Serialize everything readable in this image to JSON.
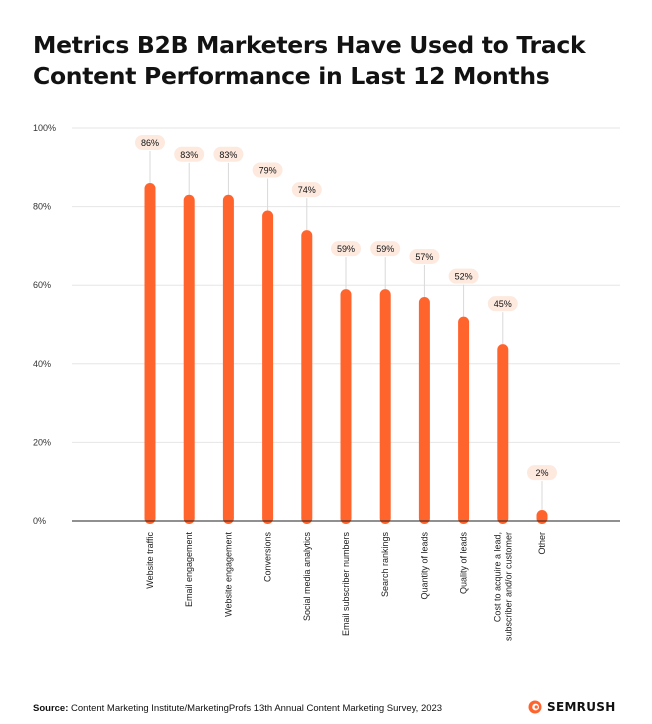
{
  "title_lines": [
    "Metrics B2B Marketers Have Used to Track",
    "Content Performance in Last 12 Months"
  ],
  "footer": {
    "source_label": "Source:",
    "source_text": "Content Marketing Institute/MarketingProfs 13th Annual Content Marketing Survey, 2023"
  },
  "brand": {
    "name": "SEMRUSH",
    "icon": "semrush-flame-icon"
  },
  "colors": {
    "bar": "#ff642d",
    "label_bg": "#fde9de",
    "grid": "#e6e6e6",
    "axis": "#222222"
  },
  "chart_data": {
    "type": "bar",
    "title": "Metrics B2B Marketers Have Used to Track Content Performance in Last 12 Months",
    "categories": [
      [
        "Website traffic"
      ],
      [
        "Email engagement"
      ],
      [
        "Website engagement"
      ],
      [
        "Conversions"
      ],
      [
        "Social media analytics"
      ],
      [
        "Email subscriber numbers"
      ],
      [
        "Search rankings"
      ],
      [
        "Quantity of leads"
      ],
      [
        "Quality of leads"
      ],
      [
        "Cost to acquire a lead,",
        "subscriber and/or customer"
      ],
      [
        "Other"
      ]
    ],
    "values": [
      86,
      83,
      83,
      79,
      74,
      59,
      59,
      57,
      52,
      45,
      2
    ],
    "value_labels": [
      "86%",
      "83%",
      "83%",
      "79%",
      "74%",
      "59%",
      "59%",
      "57%",
      "52%",
      "45%",
      "2%"
    ],
    "y_ticks": [
      0,
      20,
      40,
      60,
      80,
      100
    ],
    "y_tick_labels": [
      "0%",
      "20%",
      "40%",
      "60%",
      "80%",
      "100%"
    ],
    "ylim": [
      0,
      100
    ],
    "grid": true,
    "xlabel": "",
    "ylabel": ""
  }
}
